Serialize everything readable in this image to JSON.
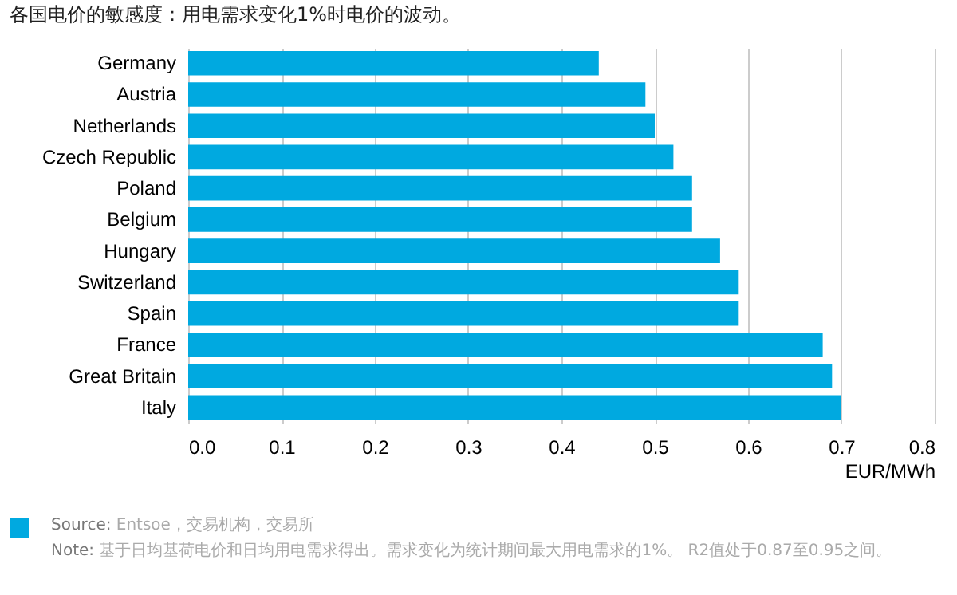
{
  "chart_data": {
    "type": "bar",
    "orientation": "horizontal",
    "title": "各国电价的敏感度：用电需求变化1%时电价的波动。",
    "categories": [
      "Germany",
      "Austria",
      "Netherlands",
      "Czech Republic",
      "Poland",
      "Belgium",
      "Hungary",
      "Switzerland",
      "Spain",
      "France",
      "Great Britain",
      "Italy"
    ],
    "values": [
      0.44,
      0.49,
      0.5,
      0.52,
      0.54,
      0.54,
      0.57,
      0.59,
      0.59,
      0.68,
      0.69,
      0.7
    ],
    "color": "#00a9e0",
    "xlabel": "EUR/MWh",
    "xlim": [
      0,
      0.8
    ],
    "xticks": [
      {
        "value": 0,
        "label": "0.0"
      },
      0.1,
      0.2,
      0.3,
      0.4,
      0.5,
      0.6,
      0.7,
      0.8
    ],
    "grid": "x",
    "annotations": [
      "Source: Entsoe，交易机构，交易所",
      "Note: 基于日均基荷电价和日均用电需求得出。需求变化为统计期间最大用电需求的1%。 R2值处于0.87至0.95之间。"
    ]
  }
}
